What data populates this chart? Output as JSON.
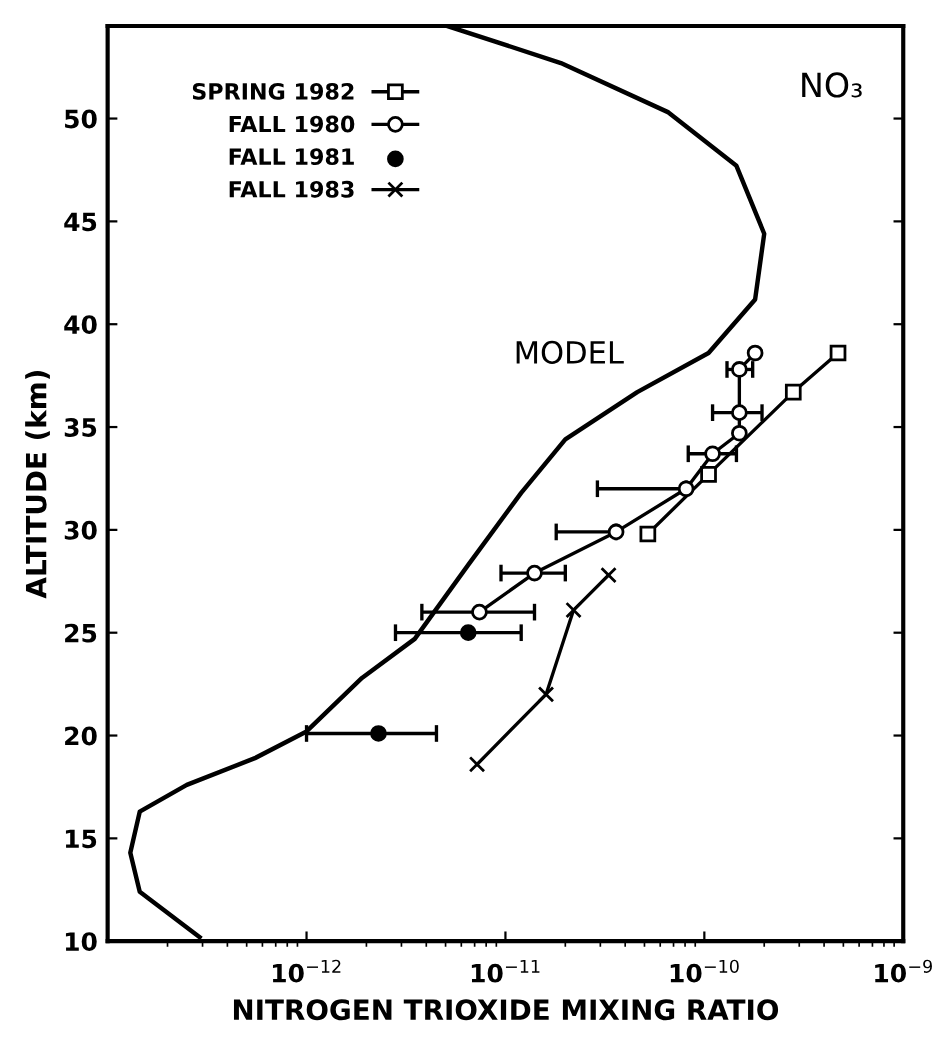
{
  "chart_data": {
    "type": "line",
    "xlabel": "NITROGEN TRIOXIDE MIXING RATIO",
    "ylabel": "ALTITUDE (km)",
    "log": "x",
    "xlim": [
      1e-13,
      1e-09
    ],
    "xticks": [
      {
        "value": 1e-12,
        "label": "10$^{−12}$"
      },
      {
        "value": 1e-11,
        "label": "10$^{−11}$"
      },
      {
        "value": 1e-10,
        "label": "10$^{−10}$"
      },
      {
        "value": 1e-09,
        "label": "10$^{−9}$"
      }
    ],
    "ylim": [
      10,
      54.5
    ],
    "yticks": [
      10,
      15,
      20,
      25,
      30,
      35,
      40,
      45,
      50
    ],
    "grid": false,
    "legend": "top left",
    "annotations": [
      "NO₃"
    ],
    "series": [
      {
        "name": "MODEL",
        "color": "#000000",
        "marker": "none",
        "line_style": "solid",
        "x": [
          5.1e-12,
          1.9e-11,
          6.6e-11,
          1.45e-10,
          2e-10,
          1.8e-10,
          1.05e-10,
          4.6e-11,
          2e-11,
          1.2e-11,
          6.5e-12,
          3.5e-12,
          1.9e-12,
          1e-12,
          5.5e-13,
          2.5e-13,
          1.45e-13,
          1.3e-13,
          1.45e-13,
          2.9e-13
        ],
        "values": [
          54.5,
          52.7,
          50.3,
          47.7,
          44.4,
          41.2,
          38.6,
          36.7,
          34.4,
          31.8,
          28.3,
          24.7,
          22.8,
          20.2,
          18.9,
          17.6,
          16.3,
          14.3,
          12.4,
          10.2
        ]
      },
      {
        "name": "SPRING 1982",
        "color": "#000000",
        "marker": "square",
        "line_style": "solid",
        "x": [
          5.2e-11,
          1.05e-10,
          2.8e-10,
          4.7e-10
        ],
        "values": [
          29.8,
          32.7,
          36.7,
          38.6
        ]
      },
      {
        "name": "FALL 1980",
        "color": "#000000",
        "marker": "circle",
        "line_style": "solid",
        "x": [
          7.4e-12,
          1.4e-11,
          3.6e-11,
          8.1e-11,
          1.1e-10,
          1.5e-10,
          1.5e-10,
          1.5e-10,
          1.8e-10
        ],
        "values": [
          26.0,
          27.9,
          29.9,
          32.0,
          33.7,
          34.7,
          35.7,
          37.8,
          38.6
        ],
        "xerrors": [
          [
            3.8e-12,
            1.4e-11
          ],
          [
            9.5e-12,
            2e-11
          ],
          [
            1.8e-11,
            3.6e-11
          ],
          [
            2.9e-11,
            8.1e-11
          ],
          [
            8.3e-11,
            1.45e-10
          ],
          null,
          [
            1.1e-10,
            1.95e-10
          ],
          [
            1.3e-10,
            1.75e-10
          ],
          null
        ]
      },
      {
        "name": "FALL 1981",
        "type": "scatter",
        "color": "#000000",
        "marker": "circle",
        "x": [
          2.3e-12,
          6.5e-12
        ],
        "values": [
          20.1,
          25.0
        ],
        "xerrors": [
          [
            1e-12,
            4.5e-12
          ],
          [
            2.8e-12,
            1.2e-11
          ]
        ]
      },
      {
        "name": "FALL 1983",
        "color": "#000000",
        "marker": "cross",
        "line_style": "solid",
        "x": [
          7.2e-12,
          1.6e-11,
          2.2e-11,
          3.3e-11
        ],
        "values": [
          18.6,
          22.0,
          26.1,
          27.8
        ]
      }
    ]
  }
}
